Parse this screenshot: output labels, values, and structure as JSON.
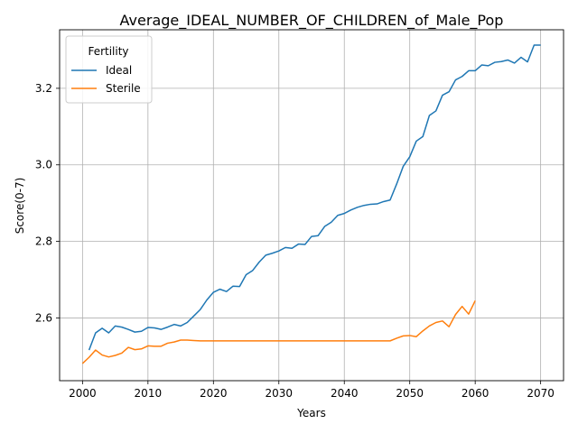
{
  "chart_data": {
    "type": "line",
    "title": "Average_IDEAL_NUMBER_OF_CHILDREN_of_Male_Pop",
    "xlabel": "Years",
    "ylabel": "Score(0-7)",
    "xlim": [
      1996.5,
      2073.5
    ],
    "ylim": [
      2.436,
      3.353
    ],
    "x_ticks": [
      2000,
      2010,
      2020,
      2030,
      2040,
      2050,
      2060,
      2070
    ],
    "x_tick_labels": [
      "2000",
      "2010",
      "2020",
      "2030",
      "2040",
      "2050",
      "2060",
      "2070"
    ],
    "y_ticks": [
      2.6,
      2.8,
      3.0,
      3.2
    ],
    "y_tick_labels": [
      "2.6",
      "2.8",
      "3.0",
      "3.2"
    ],
    "grid": true,
    "legend": {
      "title": "Fertility",
      "placement": "top-left"
    },
    "series": [
      {
        "name": "Ideal",
        "color": "#1f77b4",
        "x": [
          2001,
          2002,
          2003,
          2004,
          2005,
          2006,
          2007,
          2008,
          2009,
          2010,
          2011,
          2012,
          2013,
          2014,
          2015,
          2016,
          2017,
          2018,
          2019,
          2020,
          2021,
          2022,
          2023,
          2024,
          2025,
          2026,
          2027,
          2028,
          2029,
          2030,
          2031,
          2032,
          2033,
          2034,
          2035,
          2036,
          2037,
          2038,
          2039,
          2040,
          2041,
          2042,
          2043,
          2044,
          2045,
          2046,
          2047,
          2048,
          2049,
          2050,
          2051,
          2052,
          2053,
          2054,
          2055,
          2056,
          2057,
          2058,
          2059,
          2060,
          2061,
          2062,
          2063,
          2064,
          2065,
          2066,
          2067,
          2068,
          2069,
          2070
        ],
        "values": [
          2.516,
          2.561,
          2.573,
          2.561,
          2.579,
          2.576,
          2.57,
          2.563,
          2.565,
          2.575,
          2.574,
          2.57,
          2.576,
          2.583,
          2.579,
          2.588,
          2.605,
          2.622,
          2.647,
          2.667,
          2.675,
          2.669,
          2.683,
          2.682,
          2.713,
          2.724,
          2.746,
          2.764,
          2.769,
          2.775,
          2.784,
          2.782,
          2.793,
          2.792,
          2.813,
          2.815,
          2.839,
          2.85,
          2.868,
          2.873,
          2.882,
          2.889,
          2.894,
          2.897,
          2.898,
          2.904,
          2.908,
          2.95,
          2.996,
          3.021,
          3.062,
          3.074,
          3.129,
          3.141,
          3.182,
          3.191,
          3.222,
          3.231,
          3.246,
          3.246,
          3.261,
          3.259,
          3.268,
          3.27,
          3.274,
          3.266,
          3.281,
          3.269,
          3.313,
          3.313
        ]
      },
      {
        "name": "Sterile",
        "color": "#ff7f0e",
        "x": [
          2000,
          2001,
          2002,
          2003,
          2004,
          2005,
          2006,
          2007,
          2008,
          2009,
          2010,
          2011,
          2012,
          2013,
          2014,
          2015,
          2016,
          2017,
          2018,
          2019,
          2020,
          2021,
          2022,
          2023,
          2024,
          2025,
          2026,
          2027,
          2028,
          2029,
          2030,
          2031,
          2032,
          2033,
          2034,
          2035,
          2036,
          2037,
          2038,
          2039,
          2040,
          2041,
          2042,
          2043,
          2044,
          2045,
          2046,
          2047,
          2048,
          2049,
          2050,
          2051,
          2052,
          2053,
          2054,
          2055,
          2056,
          2057,
          2058,
          2059,
          2060
        ],
        "values": [
          2.481,
          2.497,
          2.516,
          2.503,
          2.498,
          2.502,
          2.508,
          2.523,
          2.517,
          2.519,
          2.527,
          2.526,
          2.526,
          2.534,
          2.537,
          2.542,
          2.542,
          2.541,
          2.54,
          2.54,
          2.54,
          2.54,
          2.54,
          2.54,
          2.54,
          2.54,
          2.54,
          2.54,
          2.54,
          2.54,
          2.54,
          2.54,
          2.54,
          2.54,
          2.54,
          2.54,
          2.54,
          2.54,
          2.54,
          2.54,
          2.54,
          2.54,
          2.54,
          2.54,
          2.54,
          2.54,
          2.54,
          2.54,
          2.547,
          2.553,
          2.554,
          2.551,
          2.566,
          2.579,
          2.588,
          2.592,
          2.577,
          2.609,
          2.63,
          2.61,
          2.645
        ]
      }
    ]
  }
}
